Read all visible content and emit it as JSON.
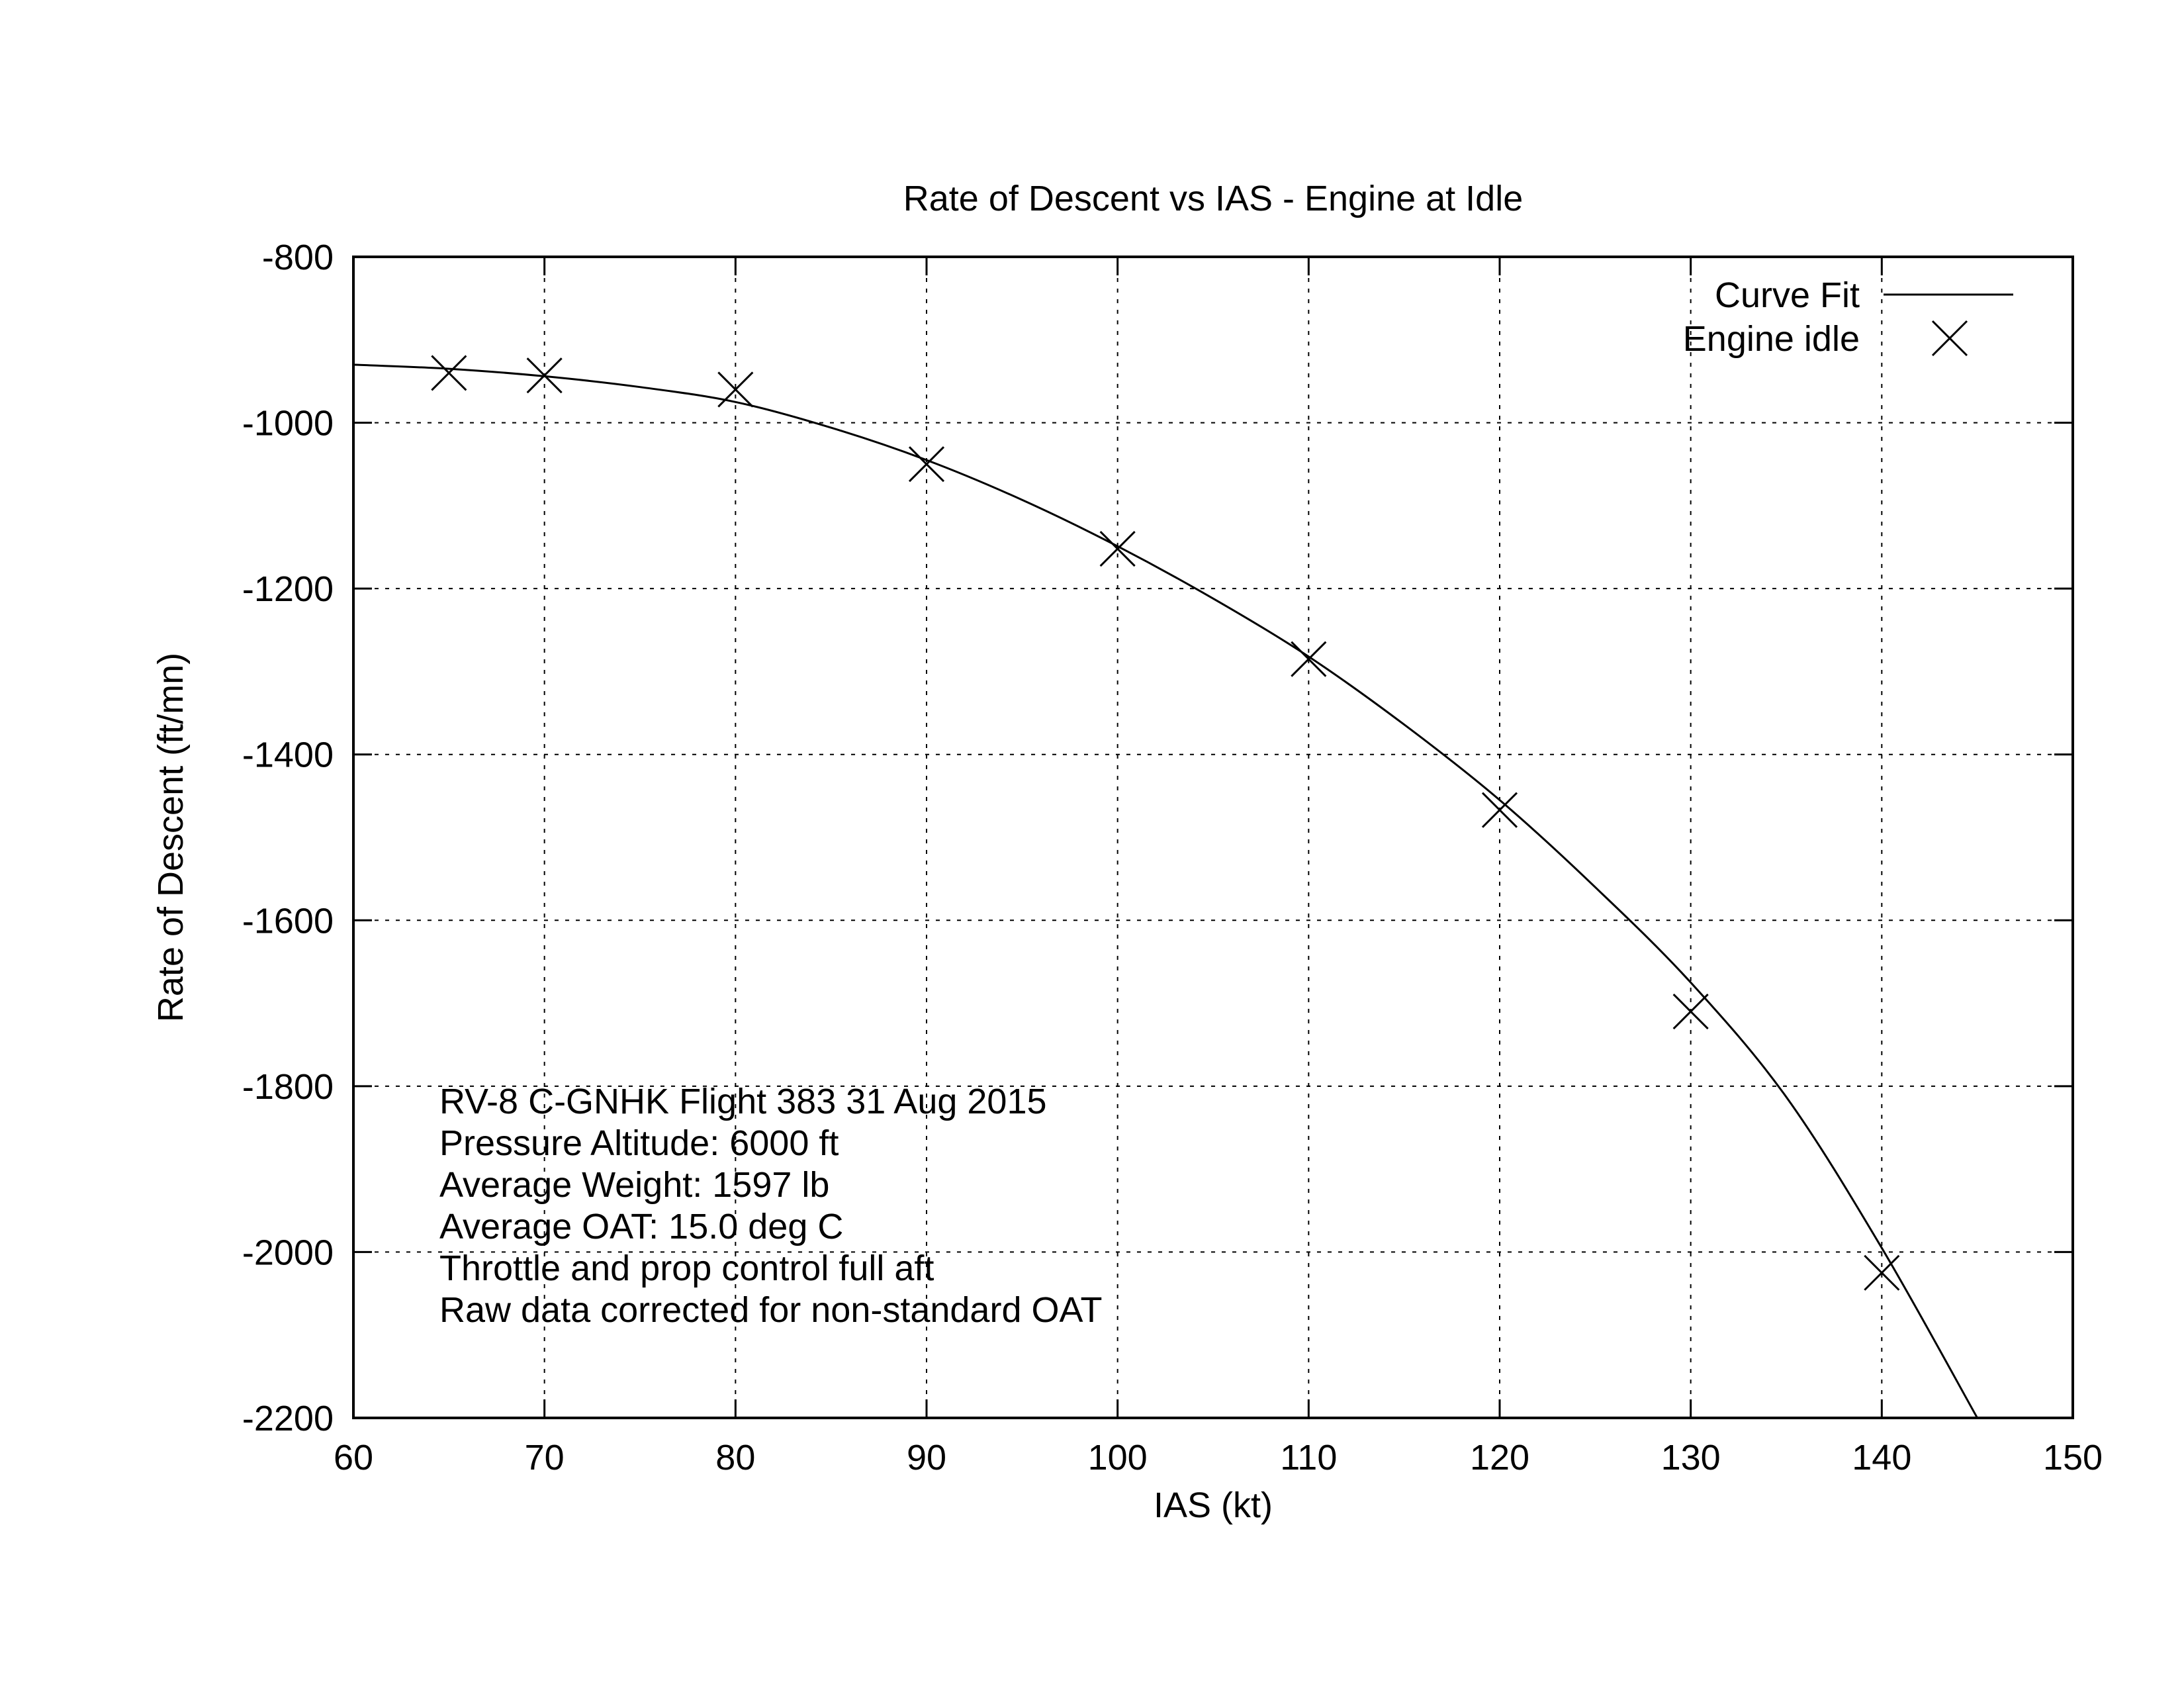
{
  "chart_data": {
    "type": "scatter",
    "title": "Rate of Descent vs IAS - Engine at Idle",
    "xlabel": "IAS (kt)",
    "ylabel": "Rate of Descent (ft/mn)",
    "xlim": [
      60,
      150
    ],
    "ylim": [
      -2200,
      -800
    ],
    "xticks": [
      60,
      70,
      80,
      90,
      100,
      110,
      120,
      130,
      140,
      150
    ],
    "yticks": [
      -800,
      -1000,
      -1200,
      -1400,
      -1600,
      -1800,
      -2000,
      -2200
    ],
    "grid": true,
    "legend_position": "top-right",
    "series": [
      {
        "name": "Curve Fit",
        "kind": "line",
        "color": "#000000",
        "x": [
          60,
          65,
          70,
          75,
          80,
          85,
          90,
          95,
          100,
          105,
          110,
          115,
          120,
          125,
          130,
          135,
          140,
          145
        ],
        "y": [
          -930,
          -935,
          -944,
          -957,
          -975,
          -1006,
          -1045,
          -1093,
          -1149,
          -1212,
          -1282,
          -1364,
          -1455,
          -1560,
          -1675,
          -1813,
          -1995,
          -2200
        ]
      },
      {
        "name": "Engine idle",
        "kind": "points",
        "marker": "x",
        "color": "#000000",
        "x": [
          65,
          70,
          80,
          90,
          100,
          110,
          120,
          130,
          140
        ],
        "y": [
          -940,
          -943,
          -960,
          -1050,
          -1152,
          -1285,
          -1467,
          -1710,
          -2025
        ]
      }
    ],
    "annotations": [
      "RV-8 C-GNHK Flight 383 31 Aug 2015",
      "Pressure Altitude: 6000 ft",
      "Average Weight: 1597 lb",
      "Average OAT: 15.0 deg C",
      "Throttle and prop control full aft",
      "Raw data corrected for non-standard OAT"
    ]
  }
}
